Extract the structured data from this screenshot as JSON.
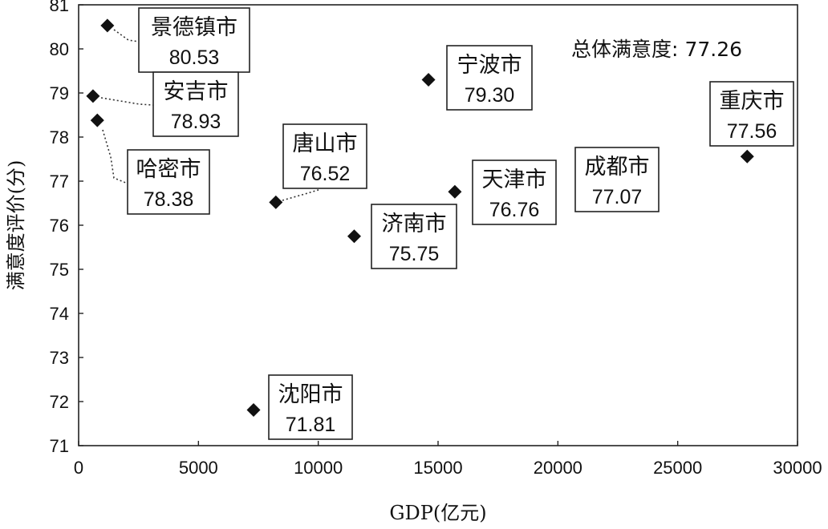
{
  "chart_data": {
    "type": "scatter",
    "xlabel": "GDP(亿元)",
    "ylabel": "满意度评价(分)",
    "xlim": [
      0,
      30000
    ],
    "ylim": [
      71,
      81
    ],
    "xticks": [
      0,
      5000,
      10000,
      15000,
      20000,
      25000,
      30000
    ],
    "yticks": [
      71,
      72,
      73,
      74,
      75,
      76,
      77,
      78,
      79,
      80,
      81
    ],
    "grid": false,
    "annotation": {
      "label": "总体满意度:",
      "value": "77.26"
    },
    "points": [
      {
        "name": "景德镇市",
        "x": 1200,
        "y": 80.53,
        "label": "80.53"
      },
      {
        "name": "安吉市",
        "x": 600,
        "y": 78.93,
        "label": "78.93"
      },
      {
        "name": "哈密市",
        "x": 780,
        "y": 78.38,
        "label": "78.38"
      },
      {
        "name": "宁波市",
        "x": 14600,
        "y": 79.3,
        "label": "79.30"
      },
      {
        "name": "重庆市",
        "x": 27900,
        "y": 77.56,
        "label": "77.56"
      },
      {
        "name": "唐山市",
        "x": 8230,
        "y": 76.52,
        "label": "76.52"
      },
      {
        "name": "天津市",
        "x": 15700,
        "y": 76.76,
        "label": "76.76"
      },
      {
        "name": "成都市",
        "x": null,
        "y": 77.07,
        "label": "77.07"
      },
      {
        "name": "济南市",
        "x": 11500,
        "y": 75.75,
        "label": "75.75"
      },
      {
        "name": "沈阳市",
        "x": 7300,
        "y": 71.81,
        "label": "71.81"
      }
    ]
  }
}
